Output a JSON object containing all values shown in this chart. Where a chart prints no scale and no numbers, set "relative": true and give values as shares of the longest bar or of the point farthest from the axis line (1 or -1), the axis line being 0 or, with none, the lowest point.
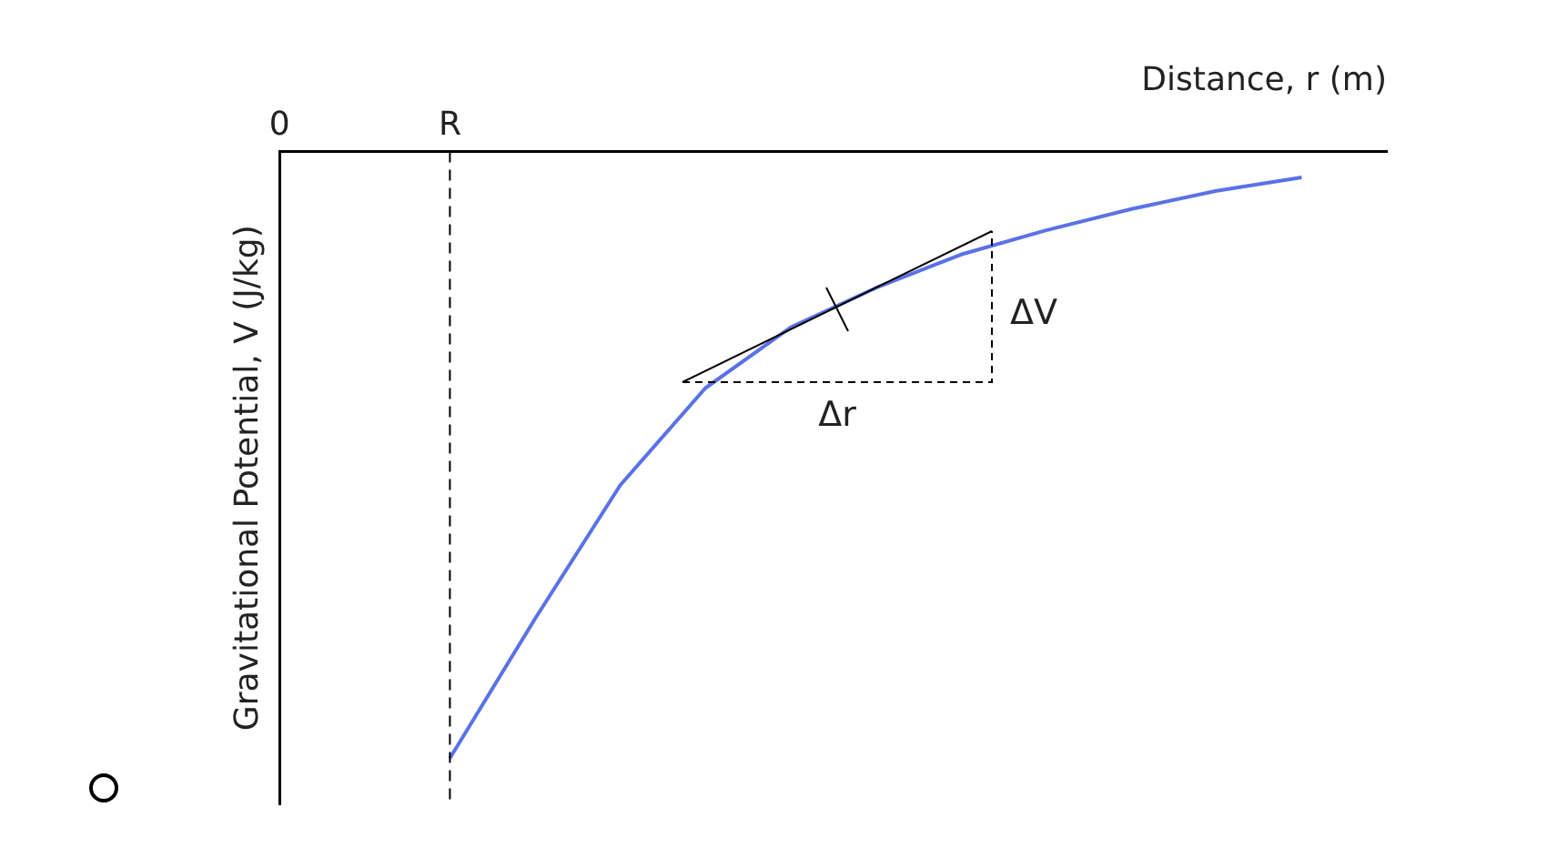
{
  "chart_data": {
    "type": "line",
    "relative": true,
    "xlabel": "Distance, r (m)",
    "ylabel": "Gravitational Potential, V (J/kg)",
    "categories": [
      "0",
      null,
      "R",
      null,
      null,
      null,
      null,
      null,
      null,
      null,
      null,
      null,
      null,
      null
    ],
    "legend": false,
    "marker": "none",
    "series": [
      {
        "color": "#5a72e6",
        "line_style": "solid",
        "values": [
          null,
          null,
          -1,
          -0.77,
          -0.55,
          -0.39,
          -0.29,
          -0.225,
          -0.17,
          -0.13,
          -0.095,
          -0.065,
          -0.043,
          null
        ]
      }
    ],
    "ref_lines": [
      {
        "axis": "x",
        "value": "R",
        "color": "#000000",
        "line_style": "dashed"
      }
    ],
    "annotations": [
      "ΔV",
      "Δr"
    ]
  }
}
